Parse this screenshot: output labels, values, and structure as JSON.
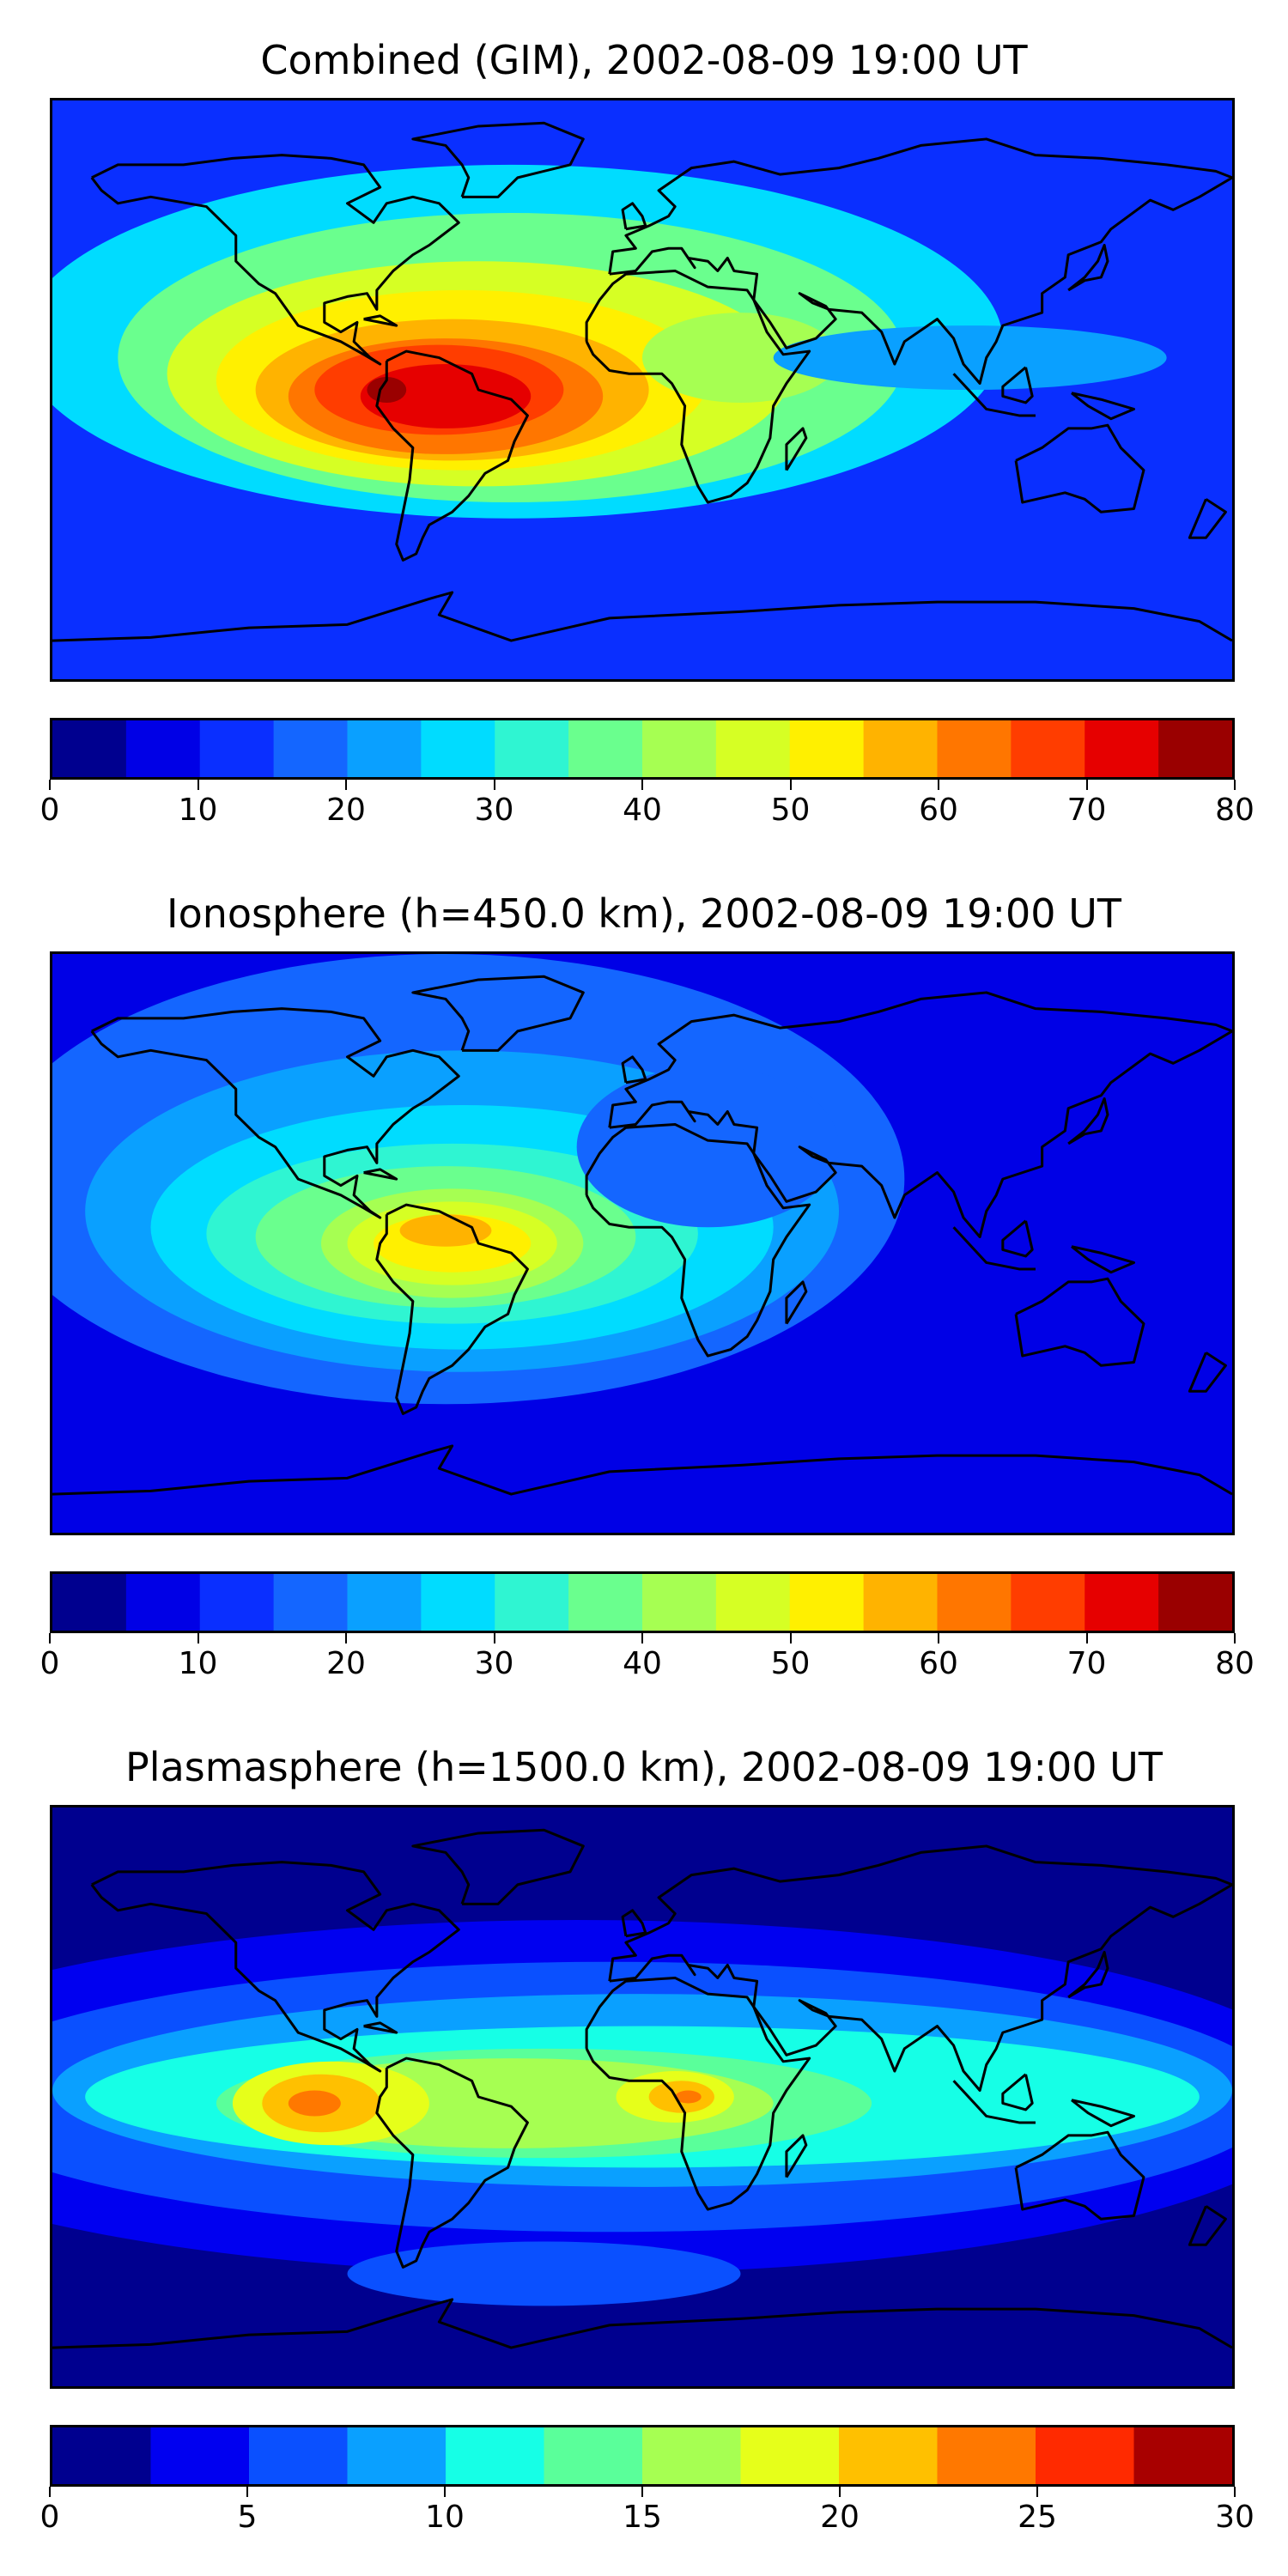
{
  "panels": [
    {
      "title": "Combined (GIM), 2002-08-09 19:00 UT",
      "colorbar": {
        "min": 0,
        "max": 80,
        "ticks": [
          "0",
          "10",
          "20",
          "30",
          "40",
          "50",
          "60",
          "70",
          "80"
        ],
        "colors": [
          "#00008f",
          "#0000e6",
          "#0a2fff",
          "#1466ff",
          "#0aa0ff",
          "#00dcff",
          "#2ff5d2",
          "#6aff8e",
          "#a6ff52",
          "#d6ff24",
          "#fff000",
          "#ffb300",
          "#ff7600",
          "#ff3d00",
          "#e60000",
          "#9a0000"
        ]
      },
      "field": {
        "background": "#0a2fff",
        "blobs": [
          {
            "lon": -40,
            "lat": 15,
            "rx": 150,
            "ry": 55,
            "level": 5
          },
          {
            "lon": -40,
            "lat": 10,
            "rx": 120,
            "ry": 45,
            "level": 7
          },
          {
            "lon": -50,
            "lat": 5,
            "rx": 95,
            "ry": 35,
            "level": 9
          },
          {
            "lon": -55,
            "lat": 3,
            "rx": 75,
            "ry": 28,
            "level": 10
          },
          {
            "lon": -58,
            "lat": 0,
            "rx": 60,
            "ry": 22,
            "level": 11
          },
          {
            "lon": -60,
            "lat": -2,
            "rx": 48,
            "ry": 18,
            "level": 12
          },
          {
            "lon": -62,
            "lat": 0,
            "rx": 38,
            "ry": 14,
            "level": 13
          },
          {
            "lon": -60,
            "lat": -2,
            "rx": 26,
            "ry": 10,
            "level": 14
          },
          {
            "lon": -78,
            "lat": 0,
            "rx": 6,
            "ry": 4,
            "level": 15
          },
          {
            "lon": 30,
            "lat": 10,
            "rx": 30,
            "ry": 14,
            "level": 8
          },
          {
            "lon": 100,
            "lat": 10,
            "rx": 60,
            "ry": 10,
            "level": 4
          }
        ]
      }
    },
    {
      "title": "Ionosphere  (h=450.0 km), 2002-08-09 19:00 UT",
      "colorbar": {
        "min": 0,
        "max": 80,
        "ticks": [
          "0",
          "10",
          "20",
          "30",
          "40",
          "50",
          "60",
          "70",
          "80"
        ],
        "colors": [
          "#00008f",
          "#0000e6",
          "#0a2fff",
          "#1466ff",
          "#0aa0ff",
          "#00dcff",
          "#2ff5d2",
          "#6aff8e",
          "#a6ff52",
          "#d6ff24",
          "#fff000",
          "#ffb300",
          "#ff7600",
          "#ff3d00",
          "#e60000",
          "#9a0000"
        ]
      },
      "field": {
        "background": "#0000e6",
        "blobs": [
          {
            "lon": -60,
            "lat": 20,
            "rx": 140,
            "ry": 70,
            "level": 3
          },
          {
            "lon": -55,
            "lat": 10,
            "rx": 115,
            "ry": 50,
            "level": 4
          },
          {
            "lon": -55,
            "lat": 5,
            "rx": 95,
            "ry": 38,
            "level": 5
          },
          {
            "lon": -58,
            "lat": 3,
            "rx": 75,
            "ry": 28,
            "level": 6
          },
          {
            "lon": -60,
            "lat": 2,
            "rx": 58,
            "ry": 22,
            "level": 7
          },
          {
            "lon": -58,
            "lat": 0,
            "rx": 40,
            "ry": 17,
            "level": 8
          },
          {
            "lon": -58,
            "lat": 0,
            "rx": 32,
            "ry": 13,
            "level": 9
          },
          {
            "lon": -58,
            "lat": 0,
            "rx": 24,
            "ry": 9,
            "level": 10
          },
          {
            "lon": -60,
            "lat": 4,
            "rx": 14,
            "ry": 5,
            "level": 11
          },
          {
            "lon": 20,
            "lat": 30,
            "rx": 40,
            "ry": 25,
            "level": 3
          }
        ]
      }
    },
    {
      "title": "Plasmasphere (h=1500.0 km), 2002-08-09 19:00 UT",
      "colorbar": {
        "min": 0,
        "max": 30,
        "ticks": [
          "0",
          "5",
          "10",
          "15",
          "20",
          "25",
          "30"
        ],
        "colors": [
          "#00008f",
          "#0000f0",
          "#0a50ff",
          "#0aa0ff",
          "#16ffe6",
          "#5aff9a",
          "#a6ff52",
          "#e6ff1a",
          "#ffc000",
          "#ff7800",
          "#ff2a00",
          "#a80000"
        ]
      },
      "field": {
        "background": "#00008f",
        "blobs": [
          {
            "lon": -20,
            "lat": 0,
            "rx": 230,
            "ry": 55,
            "level": 1
          },
          {
            "lon": -10,
            "lat": 0,
            "rx": 205,
            "ry": 42,
            "level": 2
          },
          {
            "lon": 0,
            "lat": 2,
            "rx": 180,
            "ry": 30,
            "level": 3
          },
          {
            "lon": 0,
            "lat": 0,
            "rx": 170,
            "ry": 22,
            "level": 4
          },
          {
            "lon": -30,
            "lat": -2,
            "rx": 100,
            "ry": 17,
            "level": 5
          },
          {
            "lon": -40,
            "lat": -2,
            "rx": 80,
            "ry": 14,
            "level": 6
          },
          {
            "lon": -95,
            "lat": -2,
            "rx": 30,
            "ry": 13,
            "level": 7
          },
          {
            "lon": -98,
            "lat": -2,
            "rx": 18,
            "ry": 9,
            "level": 8
          },
          {
            "lon": -100,
            "lat": -2,
            "rx": 8,
            "ry": 4,
            "level": 9
          },
          {
            "lon": 10,
            "lat": 0,
            "rx": 18,
            "ry": 8,
            "level": 7
          },
          {
            "lon": 12,
            "lat": 0,
            "rx": 10,
            "ry": 5,
            "level": 8
          },
          {
            "lon": 14,
            "lat": 0,
            "rx": 4,
            "ry": 2,
            "level": 9
          },
          {
            "lon": -30,
            "lat": -55,
            "rx": 60,
            "ry": 10,
            "level": 2
          }
        ]
      }
    }
  ]
}
